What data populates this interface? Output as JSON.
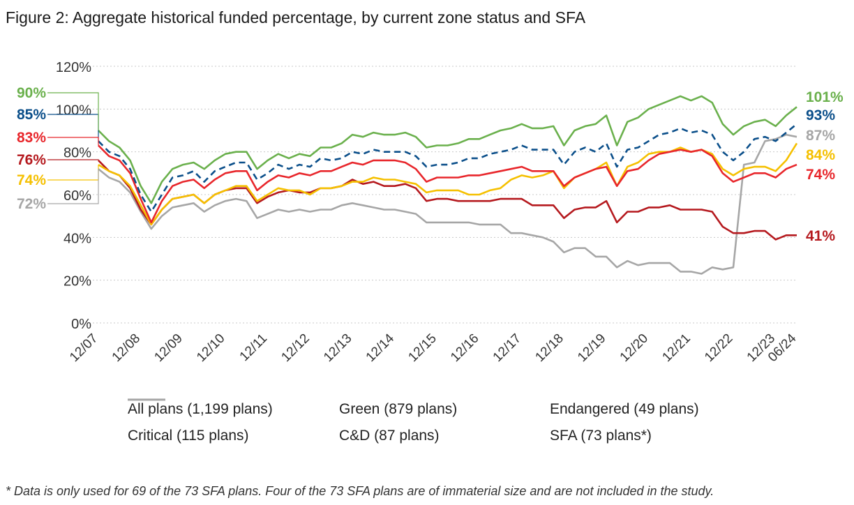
{
  "title": "Figure 2: Aggregate historical funded percentage, by current zone status and SFA",
  "footnote": "* Data is only used for 69 of the 73 SFA plans. Four of the 73 SFA plans are of immaterial size and are not included in the study.",
  "chart_data": {
    "type": "line",
    "title": "Figure 2: Aggregate historical funded percentage, by current zone status and SFA",
    "xlabel": "",
    "ylabel": "",
    "ylim": [
      0,
      120
    ],
    "yticks": [
      "0%",
      "20%",
      "40%",
      "60%",
      "80%",
      "100%",
      "120%"
    ],
    "xticks": [
      "12/07",
      "12/08",
      "12/09",
      "12/10",
      "12/11",
      "12/12",
      "12/13",
      "12/14",
      "12/15",
      "12/16",
      "12/17",
      "12/18",
      "12/19",
      "12/20",
      "12/21",
      "12/22",
      "12/23",
      "06/24"
    ],
    "grid": "horizontal dotted",
    "legend_position": "bottom",
    "x": [
      0,
      0.25,
      0.5,
      0.75,
      1,
      1.25,
      1.5,
      1.75,
      2,
      2.25,
      2.5,
      2.75,
      3,
      3.25,
      3.5,
      3.75,
      4,
      4.25,
      4.5,
      4.75,
      5,
      5.25,
      5.5,
      5.75,
      6,
      6.25,
      6.5,
      6.75,
      7,
      7.25,
      7.5,
      7.75,
      8,
      8.25,
      8.5,
      8.75,
      9,
      9.25,
      9.5,
      9.75,
      10,
      10.25,
      10.5,
      10.75,
      11,
      11.25,
      11.5,
      11.75,
      12,
      12.25,
      12.5,
      12.75,
      13,
      13.25,
      13.5,
      13.75,
      14,
      14.25,
      14.5,
      14.75,
      15,
      15.25,
      15.5,
      15.75,
      16,
      16.25,
      16.5
    ],
    "series": [
      {
        "name": "All plans (1,199 plans)",
        "color": "#0b4f8a",
        "dash": true,
        "start_label": "85%",
        "end_label": "93%",
        "values": [
          85,
          80,
          78,
          72,
          60,
          52,
          60,
          68,
          69,
          71,
          66,
          71,
          73,
          75,
          75,
          67,
          70,
          74,
          72,
          74,
          73,
          77,
          76,
          77,
          80,
          79,
          81,
          80,
          80,
          80,
          78,
          73,
          74,
          74,
          75,
          77,
          77,
          79,
          80,
          81,
          83,
          81,
          81,
          81,
          74,
          80,
          82,
          80,
          84,
          73,
          81,
          82,
          85,
          88,
          89,
          91,
          89,
          90,
          88,
          80,
          76,
          80,
          86,
          87,
          85,
          89,
          93
        ]
      },
      {
        "name": "Green (879 plans)",
        "color": "#6ab04c",
        "dash": false,
        "start_label": "90%",
        "end_label": "101%",
        "values": [
          90,
          85,
          82,
          76,
          64,
          56,
          66,
          72,
          74,
          75,
          72,
          76,
          79,
          80,
          80,
          72,
          76,
          79,
          77,
          79,
          78,
          82,
          82,
          84,
          88,
          87,
          89,
          88,
          88,
          89,
          87,
          82,
          83,
          83,
          84,
          86,
          86,
          88,
          90,
          91,
          93,
          91,
          91,
          92,
          83,
          90,
          92,
          93,
          97,
          83,
          94,
          96,
          100,
          102,
          104,
          106,
          104,
          106,
          103,
          93,
          88,
          92,
          94,
          95,
          92,
          97,
          101
        ]
      },
      {
        "name": "Endangered (49 plans)",
        "color": "#f5c000",
        "dash": false,
        "start_label": "74%",
        "end_label": "84%",
        "values": [
          74,
          71,
          69,
          64,
          55,
          46,
          53,
          58,
          59,
          60,
          56,
          60,
          62,
          64,
          64,
          57,
          60,
          63,
          62,
          62,
          60,
          63,
          63,
          64,
          66,
          66,
          68,
          67,
          67,
          66,
          65,
          61,
          62,
          62,
          62,
          60,
          60,
          62,
          63,
          67,
          69,
          68,
          69,
          71,
          63,
          68,
          70,
          72,
          75,
          64,
          73,
          75,
          79,
          80,
          80,
          82,
          80,
          81,
          79,
          72,
          69,
          72,
          73,
          73,
          71,
          76,
          84
        ]
      },
      {
        "name": "Critical (115 plans)",
        "color": "#e8262b",
        "dash": false,
        "start_label": "83%",
        "end_label": "74%",
        "values": [
          83,
          78,
          76,
          70,
          58,
          47,
          57,
          64,
          66,
          67,
          63,
          67,
          70,
          71,
          71,
          62,
          66,
          69,
          68,
          70,
          69,
          71,
          71,
          73,
          75,
          74,
          76,
          76,
          76,
          75,
          72,
          66,
          68,
          68,
          68,
          69,
          69,
          70,
          71,
          72,
          73,
          71,
          71,
          71,
          64,
          68,
          70,
          72,
          73,
          64,
          71,
          72,
          76,
          79,
          80,
          81,
          80,
          81,
          78,
          70,
          66,
          68,
          70,
          70,
          68,
          72,
          74
        ]
      },
      {
        "name": "C&D (87 plans)",
        "color": "#b5191e",
        "dash": false,
        "start_label": "76%",
        "end_label": "41%",
        "values": [
          76,
          71,
          69,
          63,
          53,
          46,
          53,
          58,
          59,
          60,
          56,
          60,
          62,
          63,
          63,
          56,
          59,
          61,
          62,
          61,
          61,
          63,
          63,
          64,
          67,
          65,
          66,
          64,
          64,
          65,
          63,
          57,
          58,
          58,
          57,
          57,
          57,
          57,
          58,
          58,
          58,
          55,
          55,
          55,
          49,
          53,
          54,
          54,
          57,
          47,
          52,
          52,
          54,
          54,
          55,
          53,
          53,
          53,
          52,
          45,
          42,
          42,
          43,
          43,
          39,
          41,
          41
        ]
      },
      {
        "name": "SFA (73 plans*)",
        "color": "#a6a6a6",
        "dash": false,
        "start_label": "72%",
        "end_label": "87%",
        "values": [
          72,
          68,
          66,
          61,
          52,
          44,
          50,
          54,
          55,
          56,
          52,
          55,
          57,
          58,
          57,
          49,
          51,
          53,
          52,
          53,
          52,
          53,
          53,
          55,
          56,
          55,
          54,
          53,
          53,
          52,
          51,
          47,
          47,
          47,
          47,
          47,
          46,
          46,
          46,
          42,
          42,
          41,
          40,
          38,
          33,
          35,
          35,
          31,
          31,
          26,
          29,
          27,
          28,
          28,
          28,
          24,
          24,
          23,
          26,
          25,
          26,
          74,
          75,
          85,
          86,
          88,
          87
        ]
      }
    ]
  },
  "legend": {
    "items": [
      {
        "label": "All plans (1,199 plans)",
        "color": "#0b4f8a",
        "dash": true
      },
      {
        "label": "Green (879 plans)",
        "color": "#6ab04c",
        "dash": false
      },
      {
        "label": "Endangered (49 plans)",
        "color": "#f5c000",
        "dash": false
      },
      {
        "label": "Critical (115 plans)",
        "color": "#e8262b",
        "dash": false
      },
      {
        "label": "C&D (87 plans)",
        "color": "#b5191e",
        "dash": false
      },
      {
        "label": "SFA (73 plans*)",
        "color": "#a6a6a6",
        "dash": false
      }
    ]
  }
}
